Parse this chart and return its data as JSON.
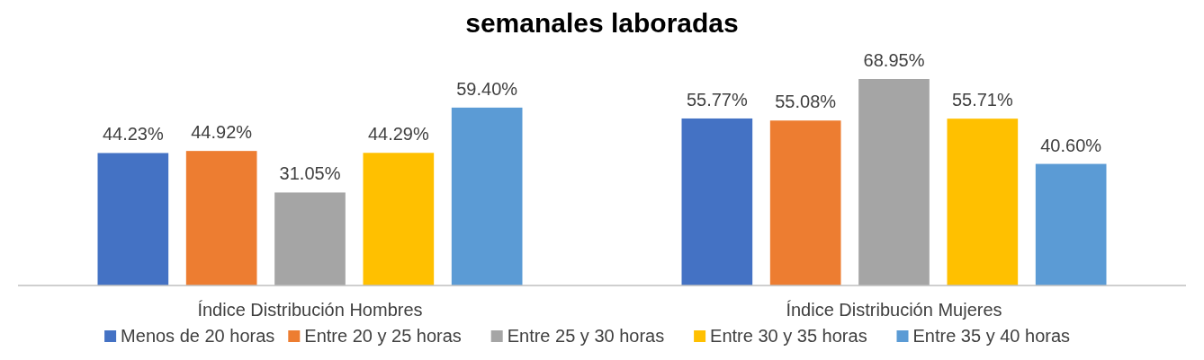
{
  "chart_data": {
    "type": "bar",
    "title": "semanales laboradas",
    "categories": [
      "Índice Distribución Hombres",
      "Índice Distribución Mujeres"
    ],
    "series": [
      {
        "name": "Menos de 20 horas",
        "color": "#4472c4",
        "values": [
          44.23,
          55.77
        ],
        "value_labels": [
          "44.23%",
          "55.77%"
        ]
      },
      {
        "name": "Entre 20 y 25 horas",
        "color": "#ed7d31",
        "values": [
          44.92,
          55.08
        ],
        "value_labels": [
          "44.92%",
          "55.08%"
        ]
      },
      {
        "name": "Entre 25 y 30 horas",
        "color": "#a5a5a5",
        "values": [
          31.05,
          68.95
        ],
        "value_labels": [
          "31.05%",
          "68.95%"
        ]
      },
      {
        "name": "Entre 30 y 35 horas",
        "color": "#ffc000",
        "values": [
          44.29,
          55.71
        ],
        "value_labels": [
          "44.29%",
          "55.71%"
        ]
      },
      {
        "name": "Entre 35 y 40 horas",
        "color": "#5b9bd5",
        "values": [
          59.4,
          40.6
        ],
        "value_labels": [
          "59.40%",
          "40.60%"
        ]
      }
    ],
    "legend": "bottom"
  }
}
